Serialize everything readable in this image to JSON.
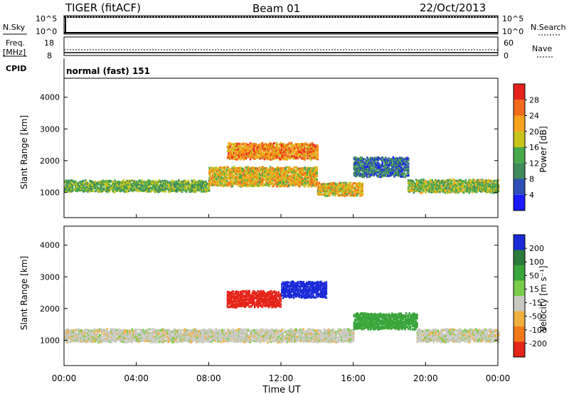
{
  "header": {
    "station": "TIGER (fitACF)",
    "beam": "Beam 01",
    "date": "22/Oct/2013"
  },
  "noise_panel": {
    "label": "N.Sky",
    "right_label": "N.Search",
    "left_ticks": [
      "10^5",
      "10^0"
    ],
    "right_ticks": [
      "10^5",
      "10^0"
    ]
  },
  "freq_panel": {
    "label_line1": "Freq.",
    "label_line2": "[MHz]",
    "right_label": "Nave",
    "left_ticks": [
      "18",
      "8"
    ],
    "right_ticks": [
      "60",
      "0"
    ]
  },
  "cpid": {
    "label": "CPID",
    "value": "normal (fast) 151"
  },
  "x_axis": {
    "title": "Time UT",
    "ticks": [
      "00:00",
      "04:00",
      "08:00",
      "12:00",
      "16:00",
      "20:00",
      "00:00"
    ]
  },
  "power_panel": {
    "ylabel": "Slant Range [km]",
    "yticks": [
      "1000",
      "2000",
      "3000",
      "4000"
    ],
    "colorbar_label": "Power [dB]",
    "colorbar_ticks": [
      "4",
      "8",
      "12",
      "16",
      "20",
      "24",
      "28"
    ],
    "colorbar_colors": [
      "#1a1aff",
      "#2e4fb5",
      "#3f8a5a",
      "#49a94d",
      "#c9c41c",
      "#f7a21c",
      "#f26a1c",
      "#e5231c"
    ]
  },
  "velocity_panel": {
    "ylabel": "Slant Range [km]",
    "yticks": [
      "1000",
      "2000",
      "3000",
      "4000"
    ],
    "colorbar_label": "Velocity [m s⁻¹]",
    "colorbar_ticks": [
      "200",
      "100",
      "50",
      "15",
      "-15",
      "-50",
      "-100",
      "-200"
    ],
    "colorbar_colors": [
      "#1a2ad8",
      "#2c7a3a",
      "#3aa53a",
      "#7acb4a",
      "#c8c8c0",
      "#f0b040",
      "#f07a1a",
      "#e5241a"
    ]
  },
  "chart_data": {
    "type": "heatmap",
    "title": "TIGER (fitACF) Beam 01 22/Oct/2013",
    "xlabel": "Time UT",
    "ylabel": "Slant Range [km]",
    "xlim": [
      0,
      24
    ],
    "ylim": [
      200,
      4600
    ],
    "grid": false,
    "power_bands": [
      {
        "t_start": 0,
        "t_end": 8,
        "range_center_km": 1200,
        "width_km": 350,
        "power_db": 16
      },
      {
        "t_start": 8,
        "t_end": 14,
        "range_center_km": 1500,
        "width_km": 600,
        "power_db": 22
      },
      {
        "t_start": 9,
        "t_end": 14,
        "range_center_km": 2300,
        "width_km": 500,
        "power_db": 26
      },
      {
        "t_start": 14,
        "t_end": 16.5,
        "range_center_km": 1100,
        "width_km": 400,
        "power_db": 22
      },
      {
        "t_start": 16,
        "t_end": 19,
        "range_center_km": 1800,
        "width_km": 600,
        "power_db": 10
      },
      {
        "t_start": 19,
        "t_end": 24,
        "range_center_km": 1200,
        "width_km": 400,
        "power_db": 18
      }
    ],
    "velocity_bands": [
      {
        "t_start": 0,
        "t_end": 16,
        "range_center_km": 1150,
        "width_km": 400,
        "velocity_ms": 0
      },
      {
        "t_start": 9,
        "t_end": 12,
        "range_center_km": 2300,
        "width_km": 500,
        "velocity_ms": -200
      },
      {
        "t_start": 12,
        "t_end": 14.5,
        "range_center_km": 2600,
        "width_km": 500,
        "velocity_ms": 200
      },
      {
        "t_start": 16,
        "t_end": 19.5,
        "range_center_km": 1600,
        "width_km": 500,
        "velocity_ms": 50
      },
      {
        "t_start": 19.5,
        "t_end": 24,
        "range_center_km": 1150,
        "width_km": 400,
        "velocity_ms": 0
      }
    ]
  }
}
